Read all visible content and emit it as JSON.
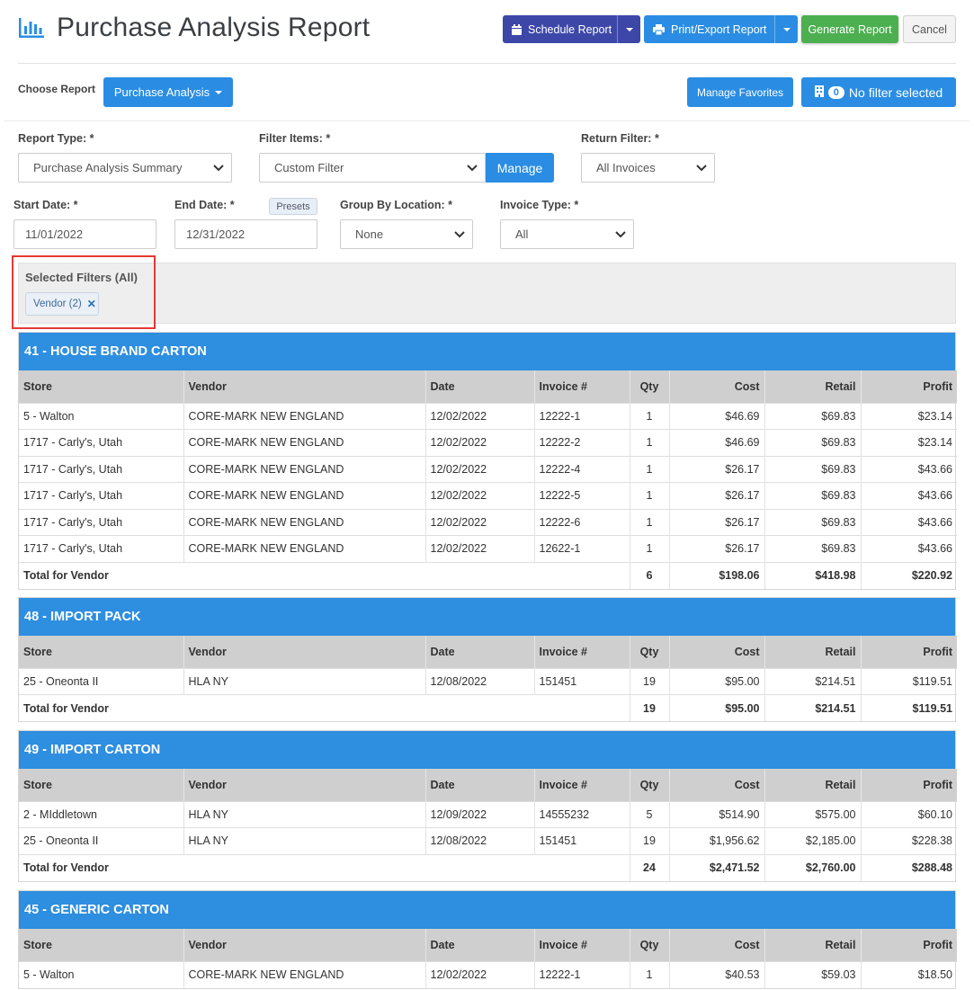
{
  "header": {
    "title": "Purchase Analysis Report",
    "schedule_label": "Schedule Report",
    "print_label": "Print/Export Report",
    "generate_label": "Generate Report",
    "cancel_label": "Cancel"
  },
  "choose": {
    "label": "Choose Report",
    "report_button": "Purchase Analysis",
    "manage_favorites": "Manage Favorites",
    "filter_count": "0",
    "filter_status": "No filter selected"
  },
  "form": {
    "report_type_label": "Report Type: *",
    "report_type_value": "Purchase Analysis Summary",
    "filter_items_label": "Filter Items: *",
    "filter_items_value": "Custom Filter",
    "manage_label": "Manage",
    "return_filter_label": "Return Filter: *",
    "return_filter_value": "All Invoices",
    "start_date_label": "Start Date: *",
    "start_date_value": "11/01/2022",
    "end_date_label": "End Date: *",
    "end_date_value": "12/31/2022",
    "presets_label": "Presets",
    "group_by_label": "Group By Location: *",
    "group_by_value": "None",
    "invoice_type_label": "Invoice Type: *",
    "invoice_type_value": "All"
  },
  "filters": {
    "title": "Selected Filters (All)",
    "chip": "Vendor (2)",
    "chip_close": "✕"
  },
  "columns": [
    "Store",
    "Vendor",
    "Date",
    "Invoice #",
    "Qty",
    "Cost",
    "Retail",
    "Profit"
  ],
  "total_label": "Total for Vendor",
  "groups": [
    {
      "title": "41 - HOUSE BRAND CARTON",
      "rows": [
        [
          "5 - Walton",
          "CORE-MARK NEW ENGLAND",
          "12/02/2022",
          "12222-1",
          "1",
          "$46.69",
          "$69.83",
          "$23.14"
        ],
        [
          "1717 - Carly's, Utah",
          "CORE-MARK NEW ENGLAND",
          "12/02/2022",
          "12222-2",
          "1",
          "$46.69",
          "$69.83",
          "$23.14"
        ],
        [
          "1717 - Carly's, Utah",
          "CORE-MARK NEW ENGLAND",
          "12/02/2022",
          "12222-4",
          "1",
          "$26.17",
          "$69.83",
          "$43.66"
        ],
        [
          "1717 - Carly's, Utah",
          "CORE-MARK NEW ENGLAND",
          "12/02/2022",
          "12222-5",
          "1",
          "$26.17",
          "$69.83",
          "$43.66"
        ],
        [
          "1717 - Carly's, Utah",
          "CORE-MARK NEW ENGLAND",
          "12/02/2022",
          "12222-6",
          "1",
          "$26.17",
          "$69.83",
          "$43.66"
        ],
        [
          "1717 - Carly's, Utah",
          "CORE-MARK NEW ENGLAND",
          "12/02/2022",
          "12622-1",
          "1",
          "$26.17",
          "$69.83",
          "$43.66"
        ]
      ],
      "total": {
        "qty": "6",
        "cost": "$198.06",
        "retail": "$418.98",
        "profit": "$220.92"
      }
    },
    {
      "title": "48 - IMPORT PACK",
      "rows": [
        [
          "25 - Oneonta II",
          "HLA NY",
          "12/08/2022",
          "151451",
          "19",
          "$95.00",
          "$214.51",
          "$119.51"
        ]
      ],
      "total": {
        "qty": "19",
        "cost": "$95.00",
        "retail": "$214.51",
        "profit": "$119.51"
      }
    },
    {
      "title": "49 - IMPORT CARTON",
      "rows": [
        [
          "2 - MIddletown",
          "HLA NY",
          "12/09/2022",
          "14555232",
          "5",
          "$514.90",
          "$575.00",
          "$60.10"
        ],
        [
          "25 - Oneonta II",
          "HLA NY",
          "12/08/2022",
          "151451",
          "19",
          "$1,956.62",
          "$2,185.00",
          "$228.38"
        ]
      ],
      "total": {
        "qty": "24",
        "cost": "$2,471.52",
        "retail": "$2,760.00",
        "profit": "$288.48"
      }
    },
    {
      "title": "45 - GENERIC CARTON",
      "rows": [
        [
          "5 - Walton",
          "CORE-MARK NEW ENGLAND",
          "12/02/2022",
          "12222-1",
          "1",
          "$40.53",
          "$59.03",
          "$18.50"
        ]
      ],
      "total": null
    }
  ]
}
